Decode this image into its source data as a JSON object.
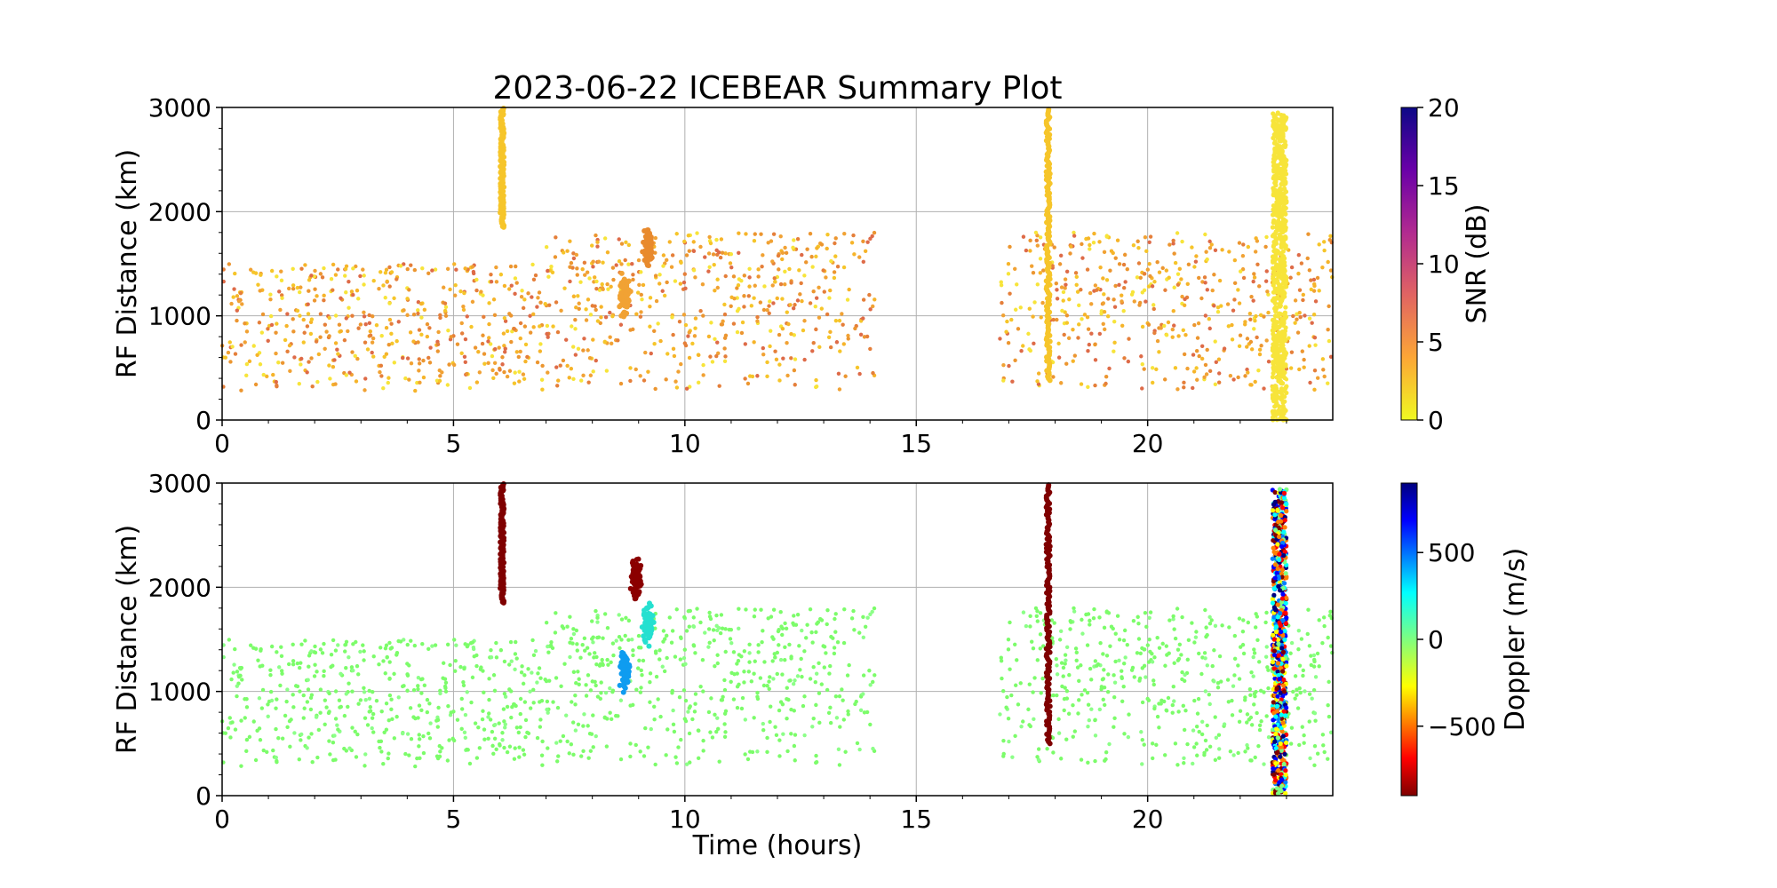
{
  "chart_data": [
    {
      "type": "scatter",
      "title": "2023-06-22 ICEBEAR Summary Plot",
      "xlabel": "",
      "ylabel": "RF Distance (km)",
      "xlim": [
        0,
        24
      ],
      "ylim": [
        0,
        3000
      ],
      "xticks": [
        "0",
        "5",
        "10",
        "15",
        "20"
      ],
      "yticks": [
        "0",
        "1000",
        "2000",
        "3000"
      ],
      "grid": true,
      "color_variable": "SNR",
      "colorbar": {
        "label": "SNR (dB)",
        "range": [
          0,
          20
        ],
        "ticks": [
          "0",
          "5",
          "10",
          "15",
          "20"
        ],
        "colormap": "plasma_r",
        "colors": [
          "#f0f921",
          "#fca636",
          "#e16462",
          "#b12a90",
          "#6a00a8",
          "#0d0887"
        ]
      },
      "background_points": {
        "x_ranges": [
          [
            0,
            14.1
          ],
          [
            16.8,
            24
          ]
        ],
        "y_range": [
          280,
          1800
        ],
        "color": "#f6b42a"
      },
      "features": [
        {
          "type": "vertical_streak",
          "x": 6.05,
          "y": [
            1850,
            3000
          ],
          "snr": 2,
          "color": "#f6c52a"
        },
        {
          "type": "vertical_streak",
          "x": 17.85,
          "y": [
            380,
            3000
          ],
          "snr": 2,
          "color": "#f6c52a"
        },
        {
          "type": "vertical_band",
          "x": [
            22.7,
            23.0
          ],
          "y": [
            0,
            2950
          ],
          "snr": 1,
          "color": "#f7e43a"
        },
        {
          "type": "cluster",
          "x": 8.7,
          "y": 1200,
          "snr": 4,
          "color": "#f1a234"
        },
        {
          "type": "cluster",
          "x": 9.2,
          "y": 1650,
          "snr": 5,
          "color": "#e88a2e"
        }
      ]
    },
    {
      "type": "scatter",
      "title": "",
      "xlabel": "Time (hours)",
      "ylabel": "RF Distance (km)",
      "xlim": [
        0,
        24
      ],
      "ylim": [
        0,
        3000
      ],
      "xticks": [
        "0",
        "5",
        "10",
        "15",
        "20"
      ],
      "yticks": [
        "0",
        "1000",
        "2000",
        "3000"
      ],
      "grid": true,
      "color_variable": "Doppler",
      "colorbar": {
        "label": "Doppler (m/s)",
        "range": [
          -900,
          900
        ],
        "ticks": [
          "500",
          "0",
          "−500"
        ],
        "tick_values": [
          500,
          0,
          -500
        ],
        "colormap": "jet_r",
        "colors": [
          "#7f0000",
          "#ff0000",
          "#ff7f00",
          "#ffff00",
          "#7fff7f",
          "#00ffff",
          "#007fff",
          "#0000ff",
          "#00007f"
        ]
      },
      "background_points": {
        "x_ranges": [
          [
            0,
            14.1
          ],
          [
            16.8,
            24
          ]
        ],
        "y_range": [
          280,
          1800
        ],
        "color": "#7cfc6a"
      },
      "features": [
        {
          "type": "vertical_streak",
          "x": 6.05,
          "y": [
            1850,
            3000
          ],
          "doppler": -850,
          "color": "#7f0000"
        },
        {
          "type": "vertical_streak",
          "x": 17.85,
          "y": [
            500,
            3000
          ],
          "doppler": -850,
          "color": "#7f0000"
        },
        {
          "type": "vertical_band",
          "x": [
            22.7,
            23.0
          ],
          "y": [
            0,
            2950
          ],
          "doppler": "mixed"
        },
        {
          "type": "cluster",
          "x": 8.7,
          "y": 1200,
          "doppler": 450,
          "color": "#0f9cf0"
        },
        {
          "type": "cluster",
          "x": 9.2,
          "y": 1650,
          "doppler": 300,
          "color": "#25e0d0"
        },
        {
          "type": "cluster",
          "x": 8.95,
          "y": 2100,
          "doppler": -850,
          "color": "#8b0000"
        }
      ]
    }
  ]
}
